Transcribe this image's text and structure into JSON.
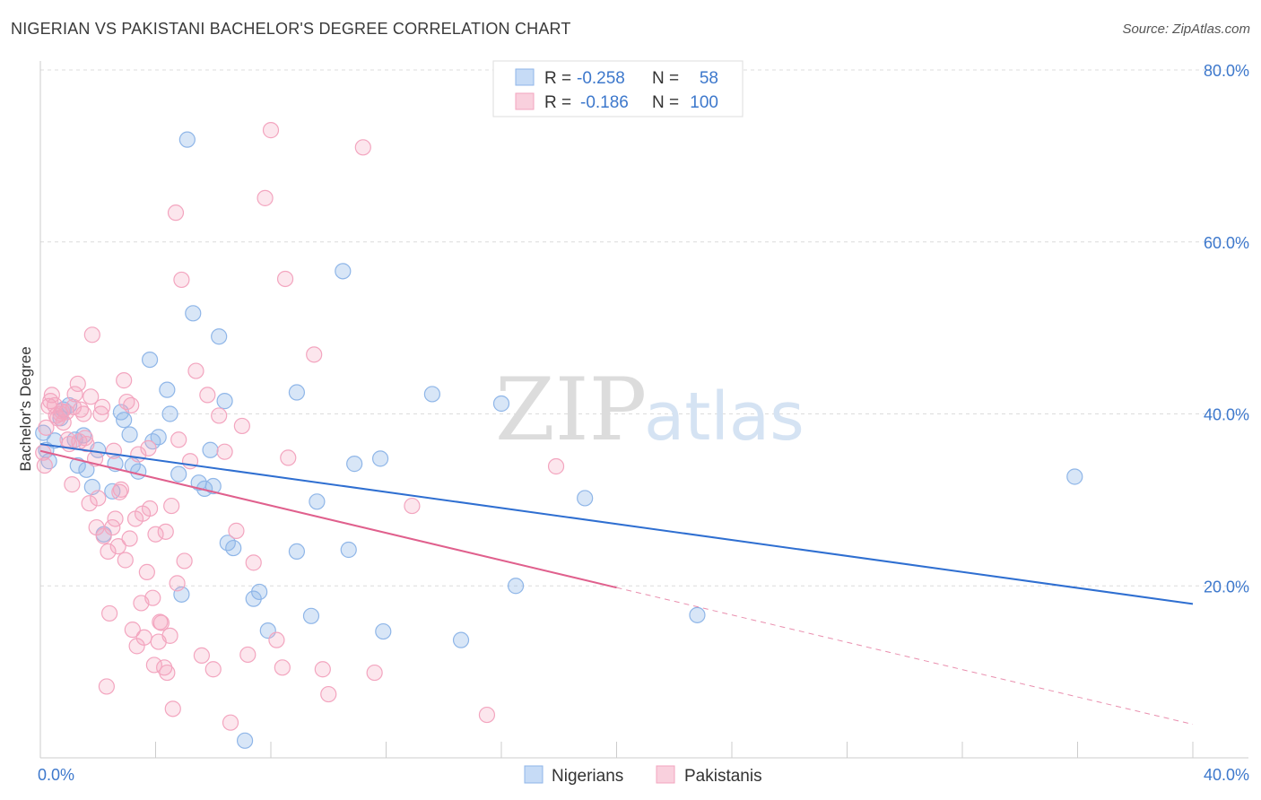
{
  "title": "NIGERIAN VS PAKISTANI BACHELOR'S DEGREE CORRELATION CHART",
  "source": "Source: ZipAtlas.com",
  "chart_data": {
    "type": "scatter",
    "title": "NIGERIAN VS PAKISTANI BACHELOR'S DEGREE CORRELATION CHART",
    "xlabel": "",
    "ylabel": "Bachelor's Degree",
    "xlim": [
      0,
      40
    ],
    "ylim": [
      0,
      80
    ],
    "x_tick_labels": [
      "0.0%",
      "40.0%"
    ],
    "y_ticks": [
      20,
      40,
      60,
      80
    ],
    "y_tick_labels": [
      "20.0%",
      "40.0%",
      "60.0%",
      "80.0%"
    ],
    "grid": "horizontal dashed",
    "watermark": [
      "ZIP",
      "atlas"
    ],
    "legend": {
      "placement": "top-center",
      "entries": [
        {
          "r_label": "R =",
          "r": "-0.258",
          "n_label": "N =",
          "n": "58"
        },
        {
          "r_label": "R =",
          "r": "-0.186",
          "n_label": "N =",
          "n": "100"
        }
      ]
    },
    "series": [
      {
        "name": "Nigerians",
        "color": "#8fb6e8",
        "line_color": "#2f6fd1",
        "trend": {
          "x0": 0,
          "y0": 36.5,
          "x1": 40,
          "y1": 17.9,
          "dashed_from": null
        },
        "points": [
          [
            0.2,
            35.8
          ],
          [
            0.5,
            36.9
          ],
          [
            0.7,
            39.5
          ],
          [
            0.8,
            40.5
          ],
          [
            1.0,
            41.0
          ],
          [
            1.2,
            37.0
          ],
          [
            1.3,
            34.0
          ],
          [
            1.5,
            37.5
          ],
          [
            1.6,
            33.5
          ],
          [
            1.8,
            31.5
          ],
          [
            2.0,
            35.8
          ],
          [
            2.2,
            26.0
          ],
          [
            2.5,
            31.0
          ],
          [
            2.6,
            34.2
          ],
          [
            2.8,
            40.2
          ],
          [
            2.9,
            39.3
          ],
          [
            3.1,
            37.6
          ],
          [
            3.2,
            34.0
          ],
          [
            3.4,
            33.3
          ],
          [
            3.8,
            46.3
          ],
          [
            3.9,
            36.8
          ],
          [
            4.1,
            37.3
          ],
          [
            4.4,
            42.8
          ],
          [
            4.5,
            40.0
          ],
          [
            4.8,
            33.0
          ],
          [
            4.9,
            19.0
          ],
          [
            5.1,
            71.9
          ],
          [
            5.3,
            51.7
          ],
          [
            5.5,
            32.0
          ],
          [
            5.7,
            31.3
          ],
          [
            5.9,
            35.8
          ],
          [
            6.0,
            31.6
          ],
          [
            6.2,
            49.0
          ],
          [
            6.4,
            41.5
          ],
          [
            6.5,
            25.0
          ],
          [
            6.7,
            24.4
          ],
          [
            7.1,
            2.0
          ],
          [
            7.4,
            18.5
          ],
          [
            7.6,
            19.3
          ],
          [
            7.9,
            14.8
          ],
          [
            8.9,
            24.0
          ],
          [
            8.9,
            42.5
          ],
          [
            9.4,
            16.5
          ],
          [
            9.6,
            29.8
          ],
          [
            10.5,
            56.6
          ],
          [
            10.7,
            24.2
          ],
          [
            10.9,
            34.2
          ],
          [
            11.8,
            34.8
          ],
          [
            11.9,
            14.7
          ],
          [
            13.6,
            42.3
          ],
          [
            14.6,
            13.7
          ],
          [
            16.0,
            41.2
          ],
          [
            16.5,
            20.0
          ],
          [
            18.9,
            30.2
          ],
          [
            22.8,
            16.6
          ],
          [
            35.9,
            32.7
          ],
          [
            0.1,
            37.8
          ],
          [
            0.3,
            34.5
          ]
        ]
      },
      {
        "name": "Pakistanis",
        "color": "#f3a5bf",
        "line_color": "#e0608d",
        "trend": {
          "x0": 0,
          "y0": 35.7,
          "x1": 40,
          "y1": 3.9,
          "dashed_from": 20
        },
        "points": [
          [
            0.1,
            35.5
          ],
          [
            0.2,
            38.4
          ],
          [
            0.3,
            40.9
          ],
          [
            0.4,
            42.2
          ],
          [
            0.5,
            41.0
          ],
          [
            0.6,
            39.5
          ],
          [
            0.7,
            40.0
          ],
          [
            0.8,
            39.0
          ],
          [
            0.9,
            40.2
          ],
          [
            1.0,
            36.5
          ],
          [
            1.1,
            31.8
          ],
          [
            1.2,
            42.3
          ],
          [
            1.3,
            43.5
          ],
          [
            1.4,
            40.5
          ],
          [
            1.5,
            40.0
          ],
          [
            1.6,
            36.5
          ],
          [
            1.7,
            29.6
          ],
          [
            1.8,
            49.2
          ],
          [
            1.9,
            34.8
          ],
          [
            2.0,
            30.2
          ],
          [
            2.1,
            40.0
          ],
          [
            2.2,
            25.8
          ],
          [
            2.3,
            8.3
          ],
          [
            2.4,
            16.8
          ],
          [
            2.5,
            26.8
          ],
          [
            2.6,
            27.8
          ],
          [
            2.7,
            24.6
          ],
          [
            2.8,
            31.2
          ],
          [
            2.9,
            43.9
          ],
          [
            3.0,
            41.4
          ],
          [
            3.1,
            25.5
          ],
          [
            3.2,
            14.9
          ],
          [
            3.3,
            27.8
          ],
          [
            3.4,
            35.3
          ],
          [
            3.5,
            18.0
          ],
          [
            3.6,
            14.0
          ],
          [
            3.7,
            21.6
          ],
          [
            3.8,
            29.0
          ],
          [
            3.9,
            18.6
          ],
          [
            4.0,
            26.0
          ],
          [
            4.1,
            13.5
          ],
          [
            4.2,
            15.7
          ],
          [
            4.3,
            10.5
          ],
          [
            4.4,
            9.9
          ],
          [
            4.5,
            14.2
          ],
          [
            4.6,
            5.7
          ],
          [
            4.7,
            63.4
          ],
          [
            4.8,
            37.0
          ],
          [
            4.9,
            55.6
          ],
          [
            5.0,
            22.9
          ],
          [
            5.2,
            34.5
          ],
          [
            5.4,
            45.0
          ],
          [
            5.6,
            11.9
          ],
          [
            5.8,
            42.2
          ],
          [
            6.0,
            10.3
          ],
          [
            6.2,
            39.8
          ],
          [
            6.4,
            35.6
          ],
          [
            6.6,
            4.1
          ],
          [
            6.8,
            26.4
          ],
          [
            7.0,
            38.6
          ],
          [
            7.2,
            12.0
          ],
          [
            7.4,
            22.7
          ],
          [
            7.8,
            65.1
          ],
          [
            8.0,
            73.0
          ],
          [
            8.2,
            13.7
          ],
          [
            8.4,
            10.5
          ],
          [
            8.5,
            55.7
          ],
          [
            8.6,
            34.9
          ],
          [
            9.5,
            46.9
          ],
          [
            9.8,
            10.3
          ],
          [
            10.0,
            7.4
          ],
          [
            11.2,
            71.0
          ],
          [
            11.6,
            9.9
          ],
          [
            12.9,
            29.3
          ],
          [
            15.5,
            5.0
          ],
          [
            17.9,
            33.9
          ],
          [
            0.15,
            34.0
          ],
          [
            0.35,
            41.5
          ],
          [
            0.55,
            39.8
          ],
          [
            0.75,
            40.3
          ],
          [
            0.95,
            37.0
          ],
          [
            1.15,
            40.8
          ],
          [
            1.35,
            36.8
          ],
          [
            1.55,
            37.2
          ],
          [
            1.75,
            42.0
          ],
          [
            1.95,
            26.8
          ],
          [
            2.15,
            40.8
          ],
          [
            2.35,
            24.0
          ],
          [
            2.55,
            35.7
          ],
          [
            2.75,
            30.9
          ],
          [
            2.95,
            23.0
          ],
          [
            3.15,
            41.0
          ],
          [
            3.35,
            13.0
          ],
          [
            3.55,
            28.4
          ],
          [
            3.75,
            36.0
          ],
          [
            3.95,
            10.8
          ],
          [
            4.15,
            15.8
          ],
          [
            4.35,
            26.3
          ],
          [
            4.55,
            29.3
          ],
          [
            4.75,
            20.3
          ]
        ]
      }
    ]
  },
  "bottom_legend": [
    "Nigerians",
    "Pakistanis"
  ]
}
